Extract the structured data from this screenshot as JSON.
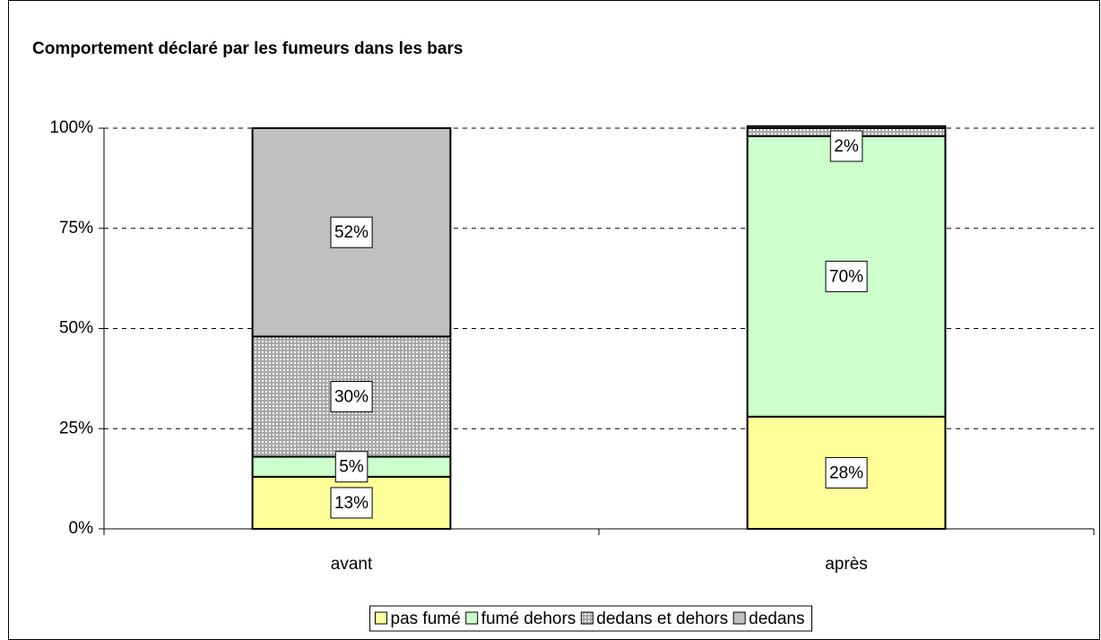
{
  "chart_data": {
    "type": "stacked_bar",
    "title": "Comportement déclaré par les fumeurs dans les bars",
    "categories": [
      "avant",
      "après"
    ],
    "series": [
      {
        "name": "pas fumé",
        "color": "#ffff99",
        "values": [
          13,
          28
        ],
        "value_labels": [
          "13%",
          "28%"
        ]
      },
      {
        "name": "fumé dehors",
        "color": "#ccffcc",
        "values": [
          5,
          70
        ],
        "value_labels": [
          "5%",
          "70%"
        ]
      },
      {
        "name": "dedans et dehors",
        "color": "#b8b8b8",
        "pattern": "dots",
        "values": [
          30,
          2
        ],
        "value_labels": [
          "30%",
          "2%"
        ]
      },
      {
        "name": "dedans",
        "color": "#c0c0c0",
        "values": [
          52,
          0.5
        ],
        "value_labels": [
          "52%",
          null
        ]
      }
    ],
    "ylim": [
      0,
      100
    ],
    "yticks": [
      {
        "value": 0,
        "label": "0%"
      },
      {
        "value": 25,
        "label": "25%"
      },
      {
        "value": 50,
        "label": "50%"
      },
      {
        "value": 75,
        "label": "75%"
      },
      {
        "value": 100,
        "label": "100%"
      }
    ],
    "grid": true,
    "legend": "bottom"
  }
}
